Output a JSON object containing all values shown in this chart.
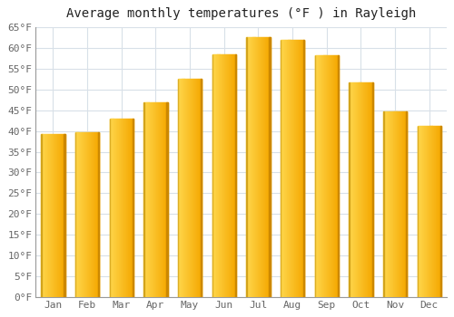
{
  "title": "Average monthly temperatures (°F ) in Rayleigh",
  "months": [
    "Jan",
    "Feb",
    "Mar",
    "Apr",
    "May",
    "Jun",
    "Jul",
    "Aug",
    "Sep",
    "Oct",
    "Nov",
    "Dec"
  ],
  "values": [
    39.2,
    39.7,
    43.0,
    46.9,
    52.7,
    58.6,
    62.6,
    62.1,
    58.3,
    51.8,
    44.8,
    41.2
  ],
  "bar_color_left": "#FFD84D",
  "bar_color_right": "#F5A800",
  "bar_edge_color": "#CC8800",
  "ylim": [
    0,
    65
  ],
  "yticks": [
    0,
    5,
    10,
    15,
    20,
    25,
    30,
    35,
    40,
    45,
    50,
    55,
    60,
    65
  ],
  "ytick_labels": [
    "0°F",
    "5°F",
    "10°F",
    "15°F",
    "20°F",
    "25°F",
    "30°F",
    "35°F",
    "40°F",
    "45°F",
    "50°F",
    "55°F",
    "60°F",
    "65°F"
  ],
  "background_color": "#ffffff",
  "grid_color": "#d8e0e8",
  "title_fontsize": 10,
  "tick_fontsize": 8,
  "font_family": "monospace",
  "bar_width": 0.7
}
